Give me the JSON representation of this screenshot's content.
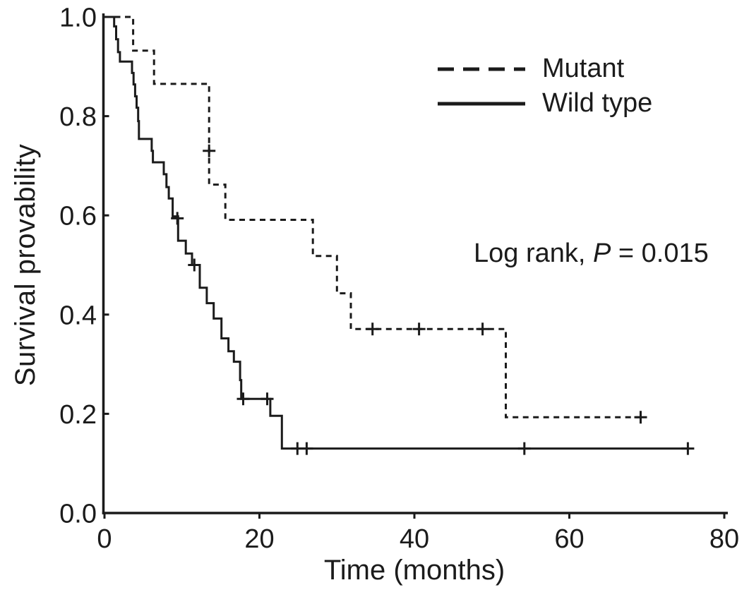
{
  "figure": {
    "background_color": "#ffffff",
    "line_color": "#1b1b1b",
    "annotation": {
      "prefix": "Log rank, ",
      "stat": "P",
      "suffix": " = 0.015"
    }
  },
  "chart_data": {
    "type": "line",
    "subtype": "kaplan-meier-step-function",
    "title": "",
    "xlabel": "Time (months)",
    "ylabel": "Survival provability",
    "xlim": [
      0,
      80
    ],
    "ylim": [
      0.0,
      1.0
    ],
    "x_tick_labels": [
      "0",
      "20",
      "40",
      "60",
      "80"
    ],
    "y_tick_labels": [
      "1.0",
      "0.8",
      "0.6",
      "0.4",
      "0.2",
      "0.0"
    ],
    "grid": false,
    "legend_position": "upper right",
    "annotation": "Log rank, P = 0.015",
    "series": [
      {
        "name": "Mutant",
        "line_style": "dashed",
        "steps": [
          [
            0,
            1.0
          ],
          [
            3.7,
            0.932
          ],
          [
            6.4,
            0.865
          ],
          [
            13.5,
            0.662
          ],
          [
            15.6,
            0.591
          ],
          [
            26.9,
            0.518
          ],
          [
            30.0,
            0.443
          ],
          [
            31.8,
            0.371
          ],
          [
            51.8,
            0.193
          ]
        ],
        "end_time": 69.3,
        "censor_marks": [
          [
            13.5,
            0.73
          ],
          [
            34.6,
            0.371
          ],
          [
            40.6,
            0.371
          ],
          [
            48.8,
            0.371
          ],
          [
            69.2,
            0.193
          ]
        ]
      },
      {
        "name": "Wild type",
        "line_style": "solid",
        "steps": [
          [
            0,
            1.0
          ],
          [
            1.25,
            0.981
          ],
          [
            1.5,
            0.955
          ],
          [
            1.75,
            0.929
          ],
          [
            2.0,
            0.91
          ],
          [
            3.55,
            0.887
          ],
          [
            3.75,
            0.864
          ],
          [
            3.95,
            0.84
          ],
          [
            4.15,
            0.817
          ],
          [
            4.35,
            0.79
          ],
          [
            4.45,
            0.754
          ],
          [
            6.1,
            0.73
          ],
          [
            6.25,
            0.707
          ],
          [
            7.65,
            0.683
          ],
          [
            8.0,
            0.657
          ],
          [
            8.3,
            0.634
          ],
          [
            8.8,
            0.598
          ],
          [
            9.5,
            0.549
          ],
          [
            10.5,
            0.523
          ],
          [
            11.3,
            0.5
          ],
          [
            12.3,
            0.454
          ],
          [
            13.2,
            0.423
          ],
          [
            14.1,
            0.392
          ],
          [
            15.1,
            0.352
          ],
          [
            16.0,
            0.326
          ],
          [
            16.7,
            0.305
          ],
          [
            17.5,
            0.268
          ],
          [
            17.65,
            0.23
          ],
          [
            21.4,
            0.196
          ],
          [
            22.9,
            0.13
          ]
        ],
        "end_time": 75.5,
        "censor_marks": [
          [
            9.4,
            0.594
          ],
          [
            11.6,
            0.5
          ],
          [
            17.9,
            0.23
          ],
          [
            21.0,
            0.23
          ],
          [
            24.9,
            0.13
          ],
          [
            26.1,
            0.13
          ],
          [
            54.2,
            0.13
          ],
          [
            75.3,
            0.13
          ]
        ]
      }
    ]
  }
}
